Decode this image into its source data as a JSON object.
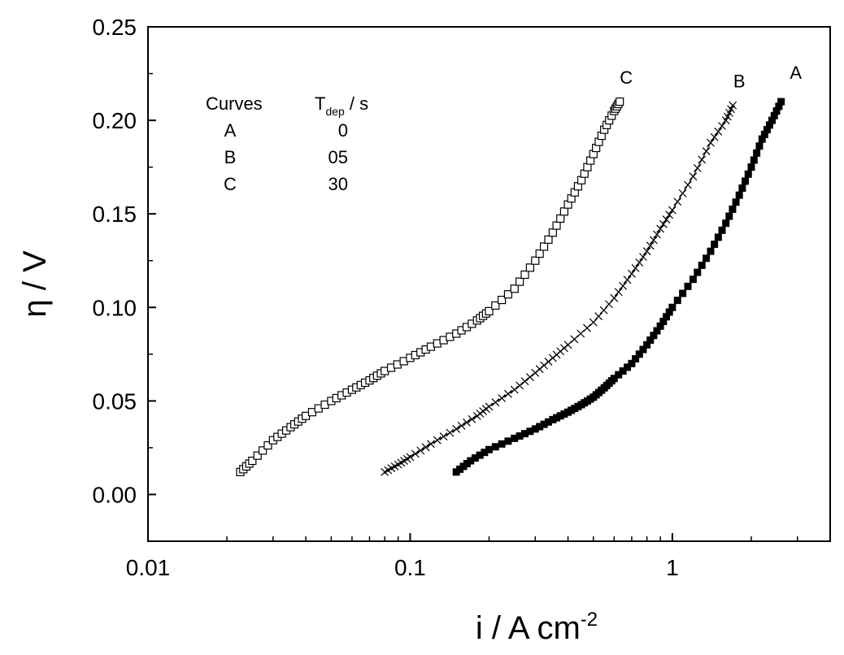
{
  "chart_data": {
    "type": "scatter",
    "xlabel": "i / A cm",
    "xlabel_sup": "-2",
    "ylabel": "η / V",
    "xscale": "log",
    "xlim": [
      0.01,
      4.0
    ],
    "ylim": [
      -0.025,
      0.25
    ],
    "x_ticks": [
      {
        "value": 0.01,
        "label": "0.01"
      },
      {
        "value": 0.1,
        "label": "0.1"
      },
      {
        "value": 1,
        "label": "1"
      }
    ],
    "y_ticks": [
      {
        "value": 0.0,
        "label": "0.00"
      },
      {
        "value": 0.05,
        "label": "0.05"
      },
      {
        "value": 0.1,
        "label": "0.10"
      },
      {
        "value": 0.15,
        "label": "0.15"
      },
      {
        "value": 0.2,
        "label": "0.20"
      },
      {
        "value": 0.25,
        "label": "0.25"
      }
    ],
    "grid": false,
    "legend_table": {
      "header": [
        "Curves",
        "T",
        "dep",
        " / s"
      ],
      "rows": [
        [
          "A",
          "0"
        ],
        [
          "B",
          "05"
        ],
        [
          "C",
          "30"
        ]
      ]
    },
    "series": [
      {
        "name": "A",
        "marker": "filled-square",
        "color": "#000000",
        "x": [
          0.15,
          0.17,
          0.2,
          0.25,
          0.3,
          0.35,
          0.4,
          0.45,
          0.5,
          0.55,
          0.6,
          0.7,
          0.8,
          0.9,
          1.0,
          1.2,
          1.4,
          1.6,
          1.8,
          2.0,
          2.2,
          2.4,
          2.6
        ],
        "y": [
          0.012,
          0.018,
          0.024,
          0.03,
          0.035,
          0.04,
          0.044,
          0.048,
          0.052,
          0.057,
          0.062,
          0.07,
          0.08,
          0.09,
          0.1,
          0.115,
          0.13,
          0.145,
          0.16,
          0.175,
          0.19,
          0.2,
          0.21
        ]
      },
      {
        "name": "B",
        "marker": "cross",
        "color": "#000000",
        "x": [
          0.08,
          0.09,
          0.1,
          0.12,
          0.15,
          0.18,
          0.2,
          0.25,
          0.3,
          0.35,
          0.4,
          0.5,
          0.6,
          0.7,
          0.8,
          0.9,
          1.0,
          1.2,
          1.4,
          1.6,
          1.7
        ],
        "y": [
          0.012,
          0.016,
          0.02,
          0.027,
          0.035,
          0.042,
          0.047,
          0.056,
          0.065,
          0.073,
          0.08,
          0.092,
          0.105,
          0.118,
          0.13,
          0.142,
          0.152,
          0.17,
          0.188,
          0.2,
          0.208
        ]
      },
      {
        "name": "C",
        "marker": "open-square",
        "color": "#000000",
        "x": [
          0.0225,
          0.025,
          0.03,
          0.035,
          0.04,
          0.05,
          0.06,
          0.07,
          0.08,
          0.1,
          0.12,
          0.15,
          0.18,
          0.2,
          0.25,
          0.3,
          0.35,
          0.4,
          0.45,
          0.5,
          0.55,
          0.6,
          0.63
        ],
        "y": [
          0.012,
          0.018,
          0.029,
          0.036,
          0.042,
          0.05,
          0.056,
          0.061,
          0.066,
          0.073,
          0.079,
          0.086,
          0.093,
          0.098,
          0.11,
          0.125,
          0.14,
          0.155,
          0.168,
          0.182,
          0.195,
          0.205,
          0.21
        ]
      }
    ],
    "annotations": [
      {
        "text": "C",
        "series": "C"
      },
      {
        "text": "B",
        "series": "B"
      },
      {
        "text": "A",
        "series": "A"
      }
    ]
  }
}
